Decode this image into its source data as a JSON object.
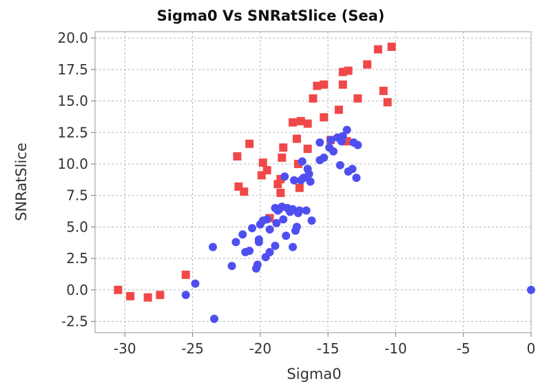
{
  "chart_data": {
    "type": "scatter",
    "title": "Sigma0 Vs SNRatSlice (Sea)",
    "xlabel": "Sigma0",
    "ylabel": "SNRatSlice",
    "xlim": [
      -32.2,
      0
    ],
    "ylim": [
      -3.4,
      20.5
    ],
    "xticks": [
      -30,
      -25,
      -20,
      -15,
      -10,
      -5,
      0
    ],
    "xtick_labels": [
      "-30",
      "-25",
      "-20",
      "-15",
      "-10",
      "-5",
      "0"
    ],
    "yticks": [
      -2.5,
      0.0,
      2.5,
      5.0,
      7.5,
      10.0,
      12.5,
      15.0,
      17.5,
      20.0
    ],
    "ytick_labels": [
      "-2.5",
      "0.0",
      "2.5",
      "5.0",
      "7.5",
      "10.0",
      "12.5",
      "15.0",
      "17.5",
      "20.0"
    ],
    "grid": true,
    "series": [
      {
        "marker": "square",
        "color": "#f04848",
        "points": [
          [
            -30.5,
            0.0
          ],
          [
            -29.6,
            -0.5
          ],
          [
            -28.3,
            -0.6
          ],
          [
            -27.4,
            -0.4
          ],
          [
            -25.5,
            1.2
          ],
          [
            -21.7,
            10.6
          ],
          [
            -21.6,
            8.2
          ],
          [
            -21.2,
            7.8
          ],
          [
            -20.8,
            11.6
          ],
          [
            -19.9,
            9.1
          ],
          [
            -19.8,
            10.1
          ],
          [
            -19.5,
            9.5
          ],
          [
            -19.3,
            5.7
          ],
          [
            -18.7,
            8.4
          ],
          [
            -18.5,
            8.8
          ],
          [
            -18.5,
            7.7
          ],
          [
            -18.4,
            10.5
          ],
          [
            -18.3,
            11.3
          ],
          [
            -17.6,
            13.3
          ],
          [
            -17.3,
            12.0
          ],
          [
            -17.2,
            10.0
          ],
          [
            -17.1,
            8.1
          ],
          [
            -17.0,
            13.4
          ],
          [
            -16.5,
            11.2
          ],
          [
            -16.5,
            13.2
          ],
          [
            -16.1,
            15.2
          ],
          [
            -15.8,
            16.2
          ],
          [
            -15.3,
            16.3
          ],
          [
            -15.3,
            13.7
          ],
          [
            -14.8,
            11.9
          ],
          [
            -14.2,
            14.3
          ],
          [
            -13.9,
            17.3
          ],
          [
            -13.9,
            16.3
          ],
          [
            -13.6,
            11.8
          ],
          [
            -13.5,
            17.4
          ],
          [
            -12.8,
            15.2
          ],
          [
            -12.1,
            17.9
          ],
          [
            -11.3,
            19.1
          ],
          [
            -10.9,
            15.8
          ],
          [
            -10.6,
            14.9
          ],
          [
            -10.3,
            19.3
          ]
        ]
      },
      {
        "marker": "circle",
        "color": "#4f4ff0",
        "points": [
          [
            -25.5,
            -0.4
          ],
          [
            -24.8,
            0.5
          ],
          [
            -23.5,
            3.4
          ],
          [
            -23.4,
            -2.3
          ],
          [
            -22.1,
            1.9
          ],
          [
            -21.8,
            3.8
          ],
          [
            -21.3,
            4.4
          ],
          [
            -21.1,
            3.0
          ],
          [
            -20.8,
            3.1
          ],
          [
            -20.6,
            4.9
          ],
          [
            -20.3,
            1.7
          ],
          [
            -20.2,
            2.0
          ],
          [
            -20.1,
            4.0
          ],
          [
            -20.1,
            3.8
          ],
          [
            -20.0,
            5.2
          ],
          [
            -19.8,
            5.5
          ],
          [
            -19.6,
            2.6
          ],
          [
            -19.5,
            5.6
          ],
          [
            -19.3,
            3.0
          ],
          [
            -19.3,
            4.8
          ],
          [
            -18.9,
            6.5
          ],
          [
            -18.9,
            3.5
          ],
          [
            -18.8,
            5.3
          ],
          [
            -18.7,
            6.3
          ],
          [
            -18.6,
            6.4
          ],
          [
            -18.4,
            6.6
          ],
          [
            -18.3,
            5.6
          ],
          [
            -18.2,
            9.0
          ],
          [
            -18.1,
            4.3
          ],
          [
            -18.0,
            6.5
          ],
          [
            -17.8,
            6.2
          ],
          [
            -17.6,
            3.4
          ],
          [
            -17.6,
            6.4
          ],
          [
            -17.5,
            8.7
          ],
          [
            -17.4,
            4.7
          ],
          [
            -17.3,
            5.0
          ],
          [
            -17.2,
            6.1
          ],
          [
            -17.1,
            6.3
          ],
          [
            -17.0,
            8.7
          ],
          [
            -16.9,
            10.2
          ],
          [
            -16.8,
            8.9
          ],
          [
            -16.6,
            6.3
          ],
          [
            -16.5,
            9.6
          ],
          [
            -16.4,
            9.2
          ],
          [
            -16.3,
            8.6
          ],
          [
            -16.2,
            5.5
          ],
          [
            -15.6,
            11.7
          ],
          [
            -15.6,
            10.3
          ],
          [
            -15.3,
            10.5
          ],
          [
            -14.9,
            11.3
          ],
          [
            -14.8,
            11.9
          ],
          [
            -14.6,
            11.0
          ],
          [
            -14.3,
            12.1
          ],
          [
            -14.1,
            9.9
          ],
          [
            -14.0,
            11.8
          ],
          [
            -13.9,
            12.2
          ],
          [
            -13.6,
            12.7
          ],
          [
            -13.5,
            9.4
          ],
          [
            -13.2,
            9.6
          ],
          [
            -13.1,
            11.7
          ],
          [
            -12.9,
            8.9
          ],
          [
            -12.8,
            11.5
          ],
          [
            0.0,
            0.0
          ]
        ]
      }
    ]
  }
}
